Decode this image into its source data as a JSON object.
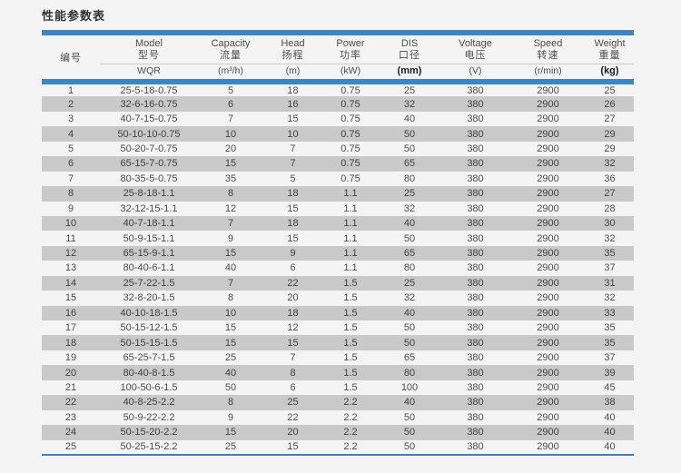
{
  "page": {
    "title": "性能参数表"
  },
  "colors": {
    "accent_blue": "#3d85c6",
    "bottom_rule_blue": "#3d7fc1",
    "row_shade_gray": "#c9c9c9",
    "background": "#f4f4f4",
    "text": "#4d4d4d"
  },
  "table": {
    "row_number_header": "编号",
    "columns": [
      {
        "key": "model",
        "en": "Model",
        "zh": "型号",
        "unit": "WQR",
        "unit_bold": false
      },
      {
        "key": "capacity",
        "en": "Capacity",
        "zh": "流量",
        "unit": "(m³/h)",
        "unit_bold": false
      },
      {
        "key": "head",
        "en": "Head",
        "zh": "扬程",
        "unit": "(m)",
        "unit_bold": false
      },
      {
        "key": "power",
        "en": "Power",
        "zh": "功率",
        "unit": "(kW)",
        "unit_bold": false
      },
      {
        "key": "dis",
        "en": "DIS",
        "zh": "口径",
        "unit": "(mm)",
        "unit_bold": true
      },
      {
        "key": "voltage",
        "en": "Voltage",
        "zh": "电压",
        "unit": "(V)",
        "unit_bold": false
      },
      {
        "key": "speed",
        "en": "Speed",
        "zh": "转速",
        "unit": "(r/min)",
        "unit_bold": false
      },
      {
        "key": "weight",
        "en": "Weight",
        "zh": "重量",
        "unit": "(kg)",
        "unit_bold": true
      }
    ],
    "rows": [
      [
        "1",
        "25-5-18-0.75",
        "5",
        "18",
        "0.75",
        "25",
        "380",
        "2900",
        "25"
      ],
      [
        "2",
        "32-6-16-0.75",
        "6",
        "16",
        "0.75",
        "32",
        "380",
        "2900",
        "26"
      ],
      [
        "3",
        "40-7-15-0.75",
        "7",
        "15",
        "0.75",
        "40",
        "380",
        "2900",
        "27"
      ],
      [
        "4",
        "50-10-10-0.75",
        "10",
        "10",
        "0.75",
        "50",
        "380",
        "2900",
        "29"
      ],
      [
        "5",
        "50-20-7-0.75",
        "20",
        "7",
        "0.75",
        "50",
        "380",
        "2900",
        "29"
      ],
      [
        "6",
        "65-15-7-0.75",
        "15",
        "7",
        "0.75",
        "65",
        "380",
        "2900",
        "32"
      ],
      [
        "7",
        "80-35-5-0.75",
        "35",
        "5",
        "0.75",
        "80",
        "380",
        "2900",
        "36"
      ],
      [
        "8",
        "25-8-18-1.1",
        "8",
        "18",
        "1.1",
        "25",
        "380",
        "2900",
        "27"
      ],
      [
        "9",
        "32-12-15-1.1",
        "12",
        "15",
        "1.1",
        "32",
        "380",
        "2900",
        "28"
      ],
      [
        "10",
        "40-7-18-1.1",
        "7",
        "18",
        "1.1",
        "40",
        "380",
        "2900",
        "30"
      ],
      [
        "11",
        "50-9-15-1.1",
        "9",
        "15",
        "1.1",
        "50",
        "380",
        "2900",
        "32"
      ],
      [
        "12",
        "65-15-9-1.1",
        "15",
        "9",
        "1.1",
        "65",
        "380",
        "2900",
        "35"
      ],
      [
        "13",
        "80-40-6-1.1",
        "40",
        "6",
        "1.1",
        "80",
        "380",
        "2900",
        "37"
      ],
      [
        "14",
        "25-7-22-1.5",
        "7",
        "22",
        "1.5",
        "25",
        "380",
        "2900",
        "31"
      ],
      [
        "15",
        "32-8-20-1.5",
        "8",
        "20",
        "1.5",
        "32",
        "380",
        "2900",
        "32"
      ],
      [
        "16",
        "40-10-18-1.5",
        "10",
        "18",
        "1.5",
        "40",
        "380",
        "2900",
        "33"
      ],
      [
        "17",
        "50-15-12-1.5",
        "15",
        "12",
        "1.5",
        "50",
        "380",
        "2900",
        "35"
      ],
      [
        "18",
        "50-15-15-1.5",
        "15",
        "15",
        "1.5",
        "50",
        "380",
        "2900",
        "35"
      ],
      [
        "19",
        "65-25-7-1.5",
        "25",
        "7",
        "1.5",
        "65",
        "380",
        "2900",
        "37"
      ],
      [
        "20",
        "80-40-8-1.5",
        "40",
        "8",
        "1.5",
        "80",
        "380",
        "2900",
        "39"
      ],
      [
        "21",
        "100-50-6-1.5",
        "50",
        "6",
        "1.5",
        "100",
        "380",
        "2900",
        "45"
      ],
      [
        "22",
        "40-8-25-2.2",
        "8",
        "25",
        "2.2",
        "40",
        "380",
        "2900",
        "38"
      ],
      [
        "23",
        "50-9-22-2.2",
        "9",
        "22",
        "2.2",
        "50",
        "380",
        "2900",
        "40"
      ],
      [
        "24",
        "50-15-20-2.2",
        "15",
        "20",
        "2.2",
        "50",
        "380",
        "2900",
        "40"
      ],
      [
        "25",
        "50-25-15-2.2",
        "25",
        "15",
        "2.2",
        "50",
        "380",
        "2900",
        "40"
      ]
    ]
  }
}
